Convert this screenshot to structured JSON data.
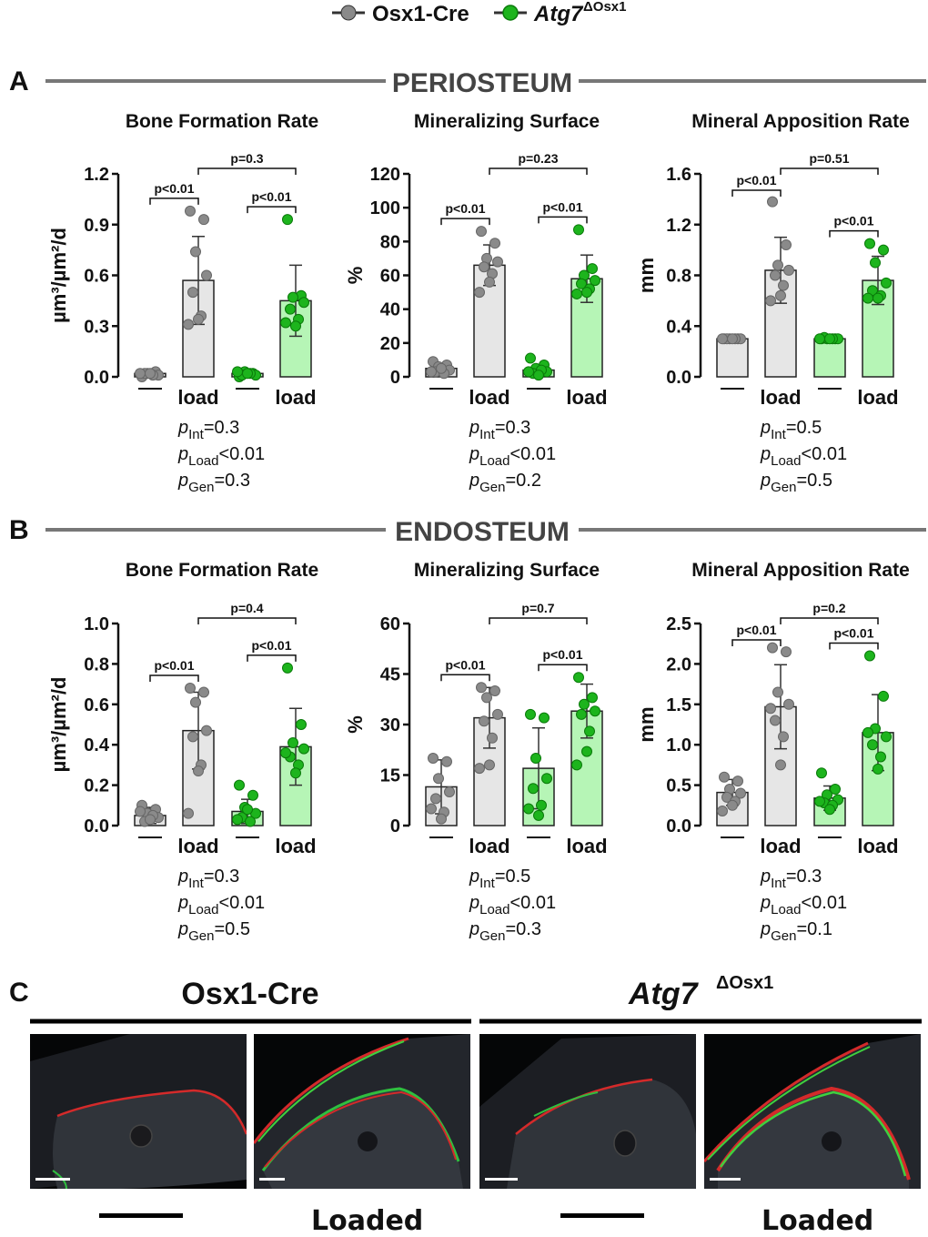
{
  "legend": {
    "items": [
      {
        "label": "Osx1-Cre",
        "color": "#8a8a8a"
      },
      {
        "label": "Atg7",
        "superscript": "ΔOsx1",
        "color": "#1db41d",
        "italic": true
      }
    ]
  },
  "panels": {
    "A": {
      "letter": "A",
      "title": "PERIOSTEUM"
    },
    "B": {
      "letter": "B",
      "title": "ENDOSTEUM"
    },
    "C": {
      "letter": "C"
    }
  },
  "x_category_labels": [
    "—",
    "load",
    "—",
    "load"
  ],
  "colors": {
    "control_bar": "#e6e6e6",
    "control_dot": "#8a8a8a",
    "ko_bar": "#b6f5b6",
    "ko_dot": "#1db41d",
    "section_line": "#777777"
  },
  "chart_data": [
    {
      "type": "bar",
      "panel": "A",
      "title": "Bone Formation Rate",
      "ylabel": "µm³/µm²/d",
      "ylim": [
        0,
        1.2
      ],
      "yticks": [
        "0.0",
        "0.3",
        "0.6",
        "0.9",
        "1.2"
      ],
      "categories": [
        "—",
        "load",
        "—",
        "load"
      ],
      "series": [
        {
          "values": [
            0.02,
            0.57,
            0.02,
            0.45
          ],
          "error": [
            0.02,
            0.26,
            0.02,
            0.21
          ],
          "points": [
            [
              0.0,
              0.03,
              0.02,
              0.01,
              0.02,
              0.01,
              0.02,
              0.02
            ],
            [
              0.98,
              0.93,
              0.74,
              0.6,
              0.5,
              0.36,
              0.34,
              0.31
            ],
            [
              0.0,
              0.02,
              0.03,
              0.01,
              0.01,
              0.02,
              0.02,
              0.03
            ],
            [
              0.93,
              0.48,
              0.47,
              0.44,
              0.4,
              0.34,
              0.3,
              0.32
            ]
          ]
        }
      ],
      "brackets": [
        {
          "from": 0,
          "to": 1,
          "label": "p<0.01",
          "level": 1
        },
        {
          "from": 2,
          "to": 3,
          "label": "p<0.01",
          "level": 1
        },
        {
          "from": 1,
          "to": 3,
          "label": "p=0.3",
          "level": 2
        }
      ],
      "stats": [
        {
          "sub": "Int",
          "val": "=0.3"
        },
        {
          "sub": "Load",
          "val": "<0.01"
        },
        {
          "sub": "Gen",
          "val": "=0.3"
        }
      ]
    },
    {
      "type": "bar",
      "panel": "A",
      "title": "Mineralizing Surface",
      "ylabel": "%",
      "ylim": [
        0,
        120
      ],
      "yticks": [
        "0",
        "20",
        "40",
        "60",
        "80",
        "100",
        "120"
      ],
      "categories": [
        "—",
        "load",
        "—",
        "load"
      ],
      "series": [
        {
          "values": [
            5,
            66,
            4,
            58
          ],
          "error": [
            3,
            12,
            3,
            14
          ],
          "points": [
            [
              9,
              7,
              6,
              4,
              3,
              2,
              5,
              3
            ],
            [
              86,
              79,
              70,
              68,
              65,
              61,
              56,
              50
            ],
            [
              11,
              7,
              5,
              3,
              2,
              4,
              1,
              3
            ],
            [
              87,
              64,
              60,
              57,
              55,
              52,
              50,
              49
            ]
          ]
        }
      ],
      "brackets": [
        {
          "from": 0,
          "to": 1,
          "label": "p<0.01",
          "level": 1
        },
        {
          "from": 2,
          "to": 3,
          "label": "p<0.01",
          "level": 1
        },
        {
          "from": 1,
          "to": 3,
          "label": "p=0.23",
          "level": 2
        }
      ],
      "stats": [
        {
          "sub": "Int",
          "val": "=0.3"
        },
        {
          "sub": "Load",
          "val": "<0.01"
        },
        {
          "sub": "Gen",
          "val": "=0.2"
        }
      ]
    },
    {
      "type": "bar",
      "panel": "A",
      "title": "Mineral Apposition Rate",
      "ylabel": "mm",
      "ylim": [
        0,
        1.6
      ],
      "yticks": [
        "0.0",
        "0.4",
        "0.8",
        "1.2",
        "1.6"
      ],
      "categories": [
        "—",
        "load",
        "—",
        "load"
      ],
      "series": [
        {
          "values": [
            0.3,
            0.84,
            0.3,
            0.76
          ],
          "error": [
            0.0,
            0.26,
            0.0,
            0.19
          ],
          "points": [
            [
              0.3,
              0.3,
              0.3,
              0.3,
              0.3,
              0.3,
              0.3,
              0.3
            ],
            [
              1.38,
              1.04,
              0.88,
              0.84,
              0.8,
              0.72,
              0.64,
              0.6
            ],
            [
              0.3,
              0.3,
              0.3,
              0.3,
              0.31,
              0.3,
              0.3,
              0.3
            ],
            [
              1.05,
              1.0,
              0.9,
              0.74,
              0.68,
              0.64,
              0.62,
              0.62
            ]
          ]
        }
      ],
      "brackets": [
        {
          "from": 0,
          "to": 1,
          "label": "p<0.01",
          "level": 1
        },
        {
          "from": 2,
          "to": 3,
          "label": "p<0.01",
          "level": 1
        },
        {
          "from": 1,
          "to": 3,
          "label": "p=0.51",
          "level": 2
        }
      ],
      "stats": [
        {
          "sub": "Int",
          "val": "=0.5"
        },
        {
          "sub": "Load",
          "val": "<0.01"
        },
        {
          "sub": "Gen",
          "val": "=0.5"
        }
      ]
    },
    {
      "type": "bar",
      "panel": "B",
      "title": "Bone Formation Rate",
      "ylabel": "µm³/µm²/d",
      "ylim": [
        0,
        1.0
      ],
      "yticks": [
        "0.0",
        "0.2",
        "0.4",
        "0.6",
        "0.8",
        "1.0"
      ],
      "categories": [
        "—",
        "load",
        "—",
        "load"
      ],
      "series": [
        {
          "values": [
            0.05,
            0.47,
            0.07,
            0.39
          ],
          "error": [
            0.04,
            0.19,
            0.06,
            0.19
          ],
          "points": [
            [
              0.1,
              0.08,
              0.06,
              0.04,
              0.02,
              0.05,
              0.03,
              0.07
            ],
            [
              0.68,
              0.66,
              0.61,
              0.47,
              0.44,
              0.3,
              0.27,
              0.06
            ],
            [
              0.2,
              0.15,
              0.09,
              0.06,
              0.04,
              0.02,
              0.08,
              0.03
            ],
            [
              0.78,
              0.5,
              0.41,
              0.38,
              0.34,
              0.3,
              0.26,
              0.36
            ]
          ]
        }
      ],
      "brackets": [
        {
          "from": 0,
          "to": 1,
          "label": "p<0.01",
          "level": 1
        },
        {
          "from": 2,
          "to": 3,
          "label": "p<0.01",
          "level": 1
        },
        {
          "from": 1,
          "to": 3,
          "label": "p=0.4",
          "level": 2
        }
      ],
      "stats": [
        {
          "sub": "Int",
          "val": "=0.3"
        },
        {
          "sub": "Load",
          "val": "<0.01"
        },
        {
          "sub": "Gen",
          "val": "=0.5"
        }
      ]
    },
    {
      "type": "bar",
      "panel": "B",
      "title": "Mineralizing Surface",
      "ylabel": "%",
      "ylim": [
        0,
        60
      ],
      "yticks": [
        "0",
        "15",
        "30",
        "45",
        "60"
      ],
      "categories": [
        "—",
        "load",
        "—",
        "load"
      ],
      "series": [
        {
          "values": [
            11.5,
            32,
            17,
            34
          ],
          "error": [
            8,
            9,
            12,
            8
          ],
          "points": [
            [
              20,
              19,
              14,
              10,
              8,
              4,
              2,
              5
            ],
            [
              41,
              40,
              38,
              33,
              31,
              26,
              18,
              17
            ],
            [
              33,
              32,
              20,
              14,
              11,
              6,
              3,
              5
            ],
            [
              44,
              38,
              36,
              34,
              33,
              28,
              22,
              18
            ]
          ]
        }
      ],
      "brackets": [
        {
          "from": 0,
          "to": 1,
          "label": "p<0.01",
          "level": 1
        },
        {
          "from": 2,
          "to": 3,
          "label": "p<0.01",
          "level": 1
        },
        {
          "from": 1,
          "to": 3,
          "label": "p=0.7",
          "level": 2
        }
      ],
      "stats": [
        {
          "sub": "Int",
          "val": "=0.5"
        },
        {
          "sub": "Load",
          "val": "<0.01"
        },
        {
          "sub": "Gen",
          "val": "=0.3"
        }
      ]
    },
    {
      "type": "bar",
      "panel": "B",
      "title": "Mineral Apposition Rate",
      "ylabel": "mm",
      "ylim": [
        0,
        2.5
      ],
      "yticks": [
        "0.0",
        "0.5",
        "1.0",
        "1.5",
        "2.0",
        "2.5"
      ],
      "categories": [
        "—",
        "load",
        "—",
        "load"
      ],
      "series": [
        {
          "values": [
            0.41,
            1.47,
            0.34,
            1.15
          ],
          "error": [
            0.16,
            0.52,
            0.15,
            0.47
          ],
          "points": [
            [
              0.6,
              0.55,
              0.45,
              0.4,
              0.35,
              0.3,
              0.25,
              0.18
            ],
            [
              2.2,
              2.15,
              1.65,
              1.5,
              1.3,
              1.1,
              0.75,
              1.45
            ],
            [
              0.65,
              0.45,
              0.38,
              0.32,
              0.28,
              0.25,
              0.2,
              0.3
            ],
            [
              2.1,
              1.6,
              1.2,
              1.1,
              1.0,
              0.85,
              0.7,
              1.15
            ]
          ]
        }
      ],
      "brackets": [
        {
          "from": 0,
          "to": 1,
          "label": "p<0.01",
          "level": 1
        },
        {
          "from": 2,
          "to": 3,
          "label": "p<0.01",
          "level": 1
        },
        {
          "from": 1,
          "to": 3,
          "label": "p=0.2",
          "level": 2
        }
      ],
      "stats": [
        {
          "sub": "Int",
          "val": "=0.3"
        },
        {
          "sub": "Load",
          "val": "<0.01"
        },
        {
          "sub": "Gen",
          "val": "=0.1"
        }
      ]
    }
  ],
  "micrographs": {
    "group_left": "Osx1-Cre",
    "group_right_main": "Atg7",
    "group_right_sup": "ΔOsx1",
    "loaded_label": "Loaded"
  }
}
